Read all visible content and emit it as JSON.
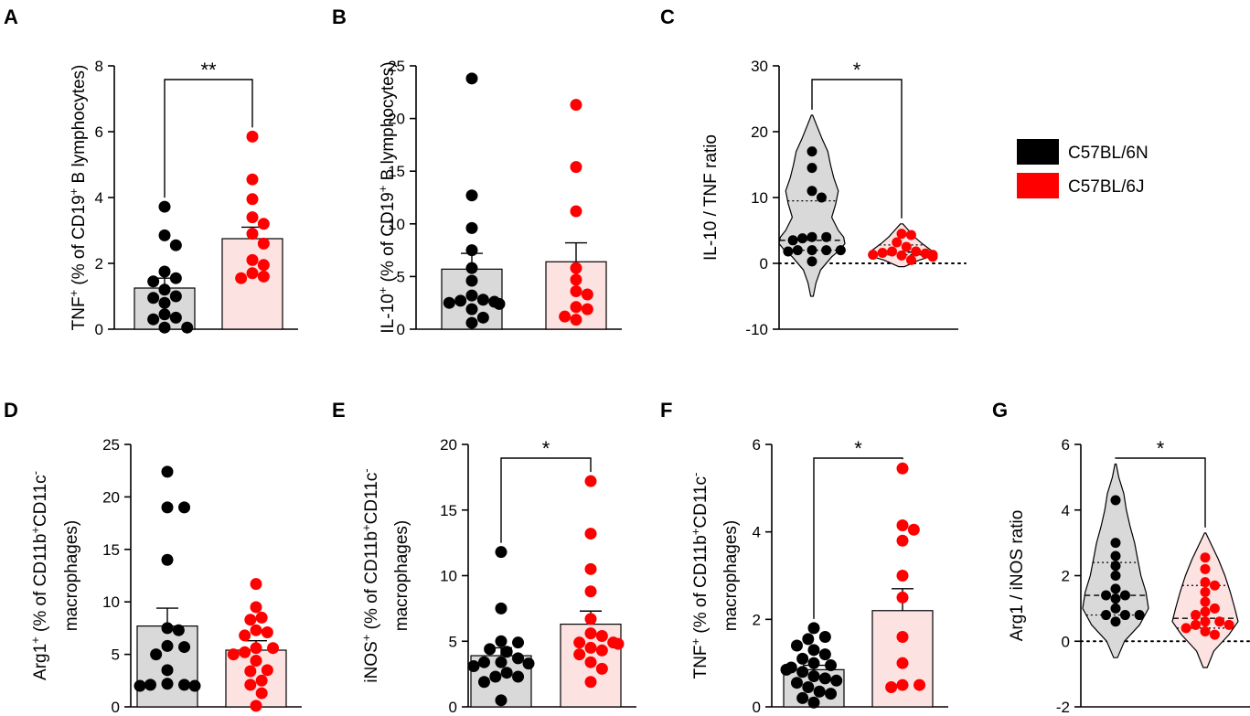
{
  "colors": {
    "group1_fill": "#d9d9d9",
    "group2_fill": "#fde2e2",
    "group1_dot": "#000000",
    "group2_dot": "#ff0000",
    "swatch1": "#000000",
    "swatch2": "#ff0000"
  },
  "legend": {
    "items": [
      "C57BL/6N",
      "C57BL/6J"
    ]
  },
  "chart_data": [
    {
      "panel": "A",
      "type": "bar",
      "ylabel": {
        "p1": "TNF",
        "s1": "+",
        "p2": " (% of CD19",
        "s2": "+",
        "p3": " B lymphocytes)"
      },
      "ylim": [
        0,
        8
      ],
      "yticks": [
        0,
        2,
        4,
        6,
        8
      ],
      "significance": "**",
      "series": [
        {
          "mean": 1.25,
          "sem": 0.3,
          "points": [
            3.72,
            2.85,
            2.55,
            1.75,
            1.55,
            1.45,
            1.2,
            1.0,
            0.95,
            0.8,
            0.45,
            0.35,
            0.3,
            0.05,
            0.05
          ]
        },
        {
          "mean": 2.75,
          "sem": 0.35,
          "points": [
            5.85,
            4.55,
            3.95,
            3.4,
            3.2,
            2.9,
            2.6,
            2.1,
            1.95,
            1.7,
            1.6,
            1.55
          ]
        }
      ]
    },
    {
      "panel": "B",
      "type": "bar",
      "ylabel": {
        "p1": "IL-10",
        "s1": "+",
        "p2": " (% of CD19",
        "s2": "+",
        "p3": " B lymphocytes)"
      },
      "ylim": [
        0,
        25
      ],
      "yticks": [
        0,
        5,
        10,
        15,
        20,
        25
      ],
      "series": [
        {
          "mean": 5.7,
          "sem": 1.5,
          "points": [
            23.8,
            12.7,
            9.6,
            7.5,
            5.8,
            4.6,
            3.2,
            2.8,
            2.6,
            2.7,
            2.5,
            2.4,
            1.9,
            1.1,
            0.6
          ]
        },
        {
          "mean": 6.4,
          "sem": 1.8,
          "points": [
            21.3,
            15.4,
            11.2,
            5.8,
            4.7,
            3.6,
            3.3,
            2.1,
            1.9,
            1.2,
            0.9
          ]
        }
      ]
    },
    {
      "panel": "C",
      "type": "violin",
      "ylabel": {
        "p1": "IL-10 / TNF ratio"
      },
      "ylim": [
        -10,
        30
      ],
      "yticks": [
        -10,
        0,
        10,
        20,
        30
      ],
      "zero_line": true,
      "significance": "*",
      "series": [
        {
          "median": 3.5,
          "q1": 2.0,
          "q3": 9.5,
          "kde_min": -5,
          "kde_max": 22.5,
          "profile": [
            [
              -5,
              0.02
            ],
            [
              -3,
              0.06
            ],
            [
              -1,
              0.13
            ],
            [
              1,
              0.3
            ],
            [
              2,
              0.42
            ],
            [
              3,
              0.5
            ],
            [
              4,
              0.48
            ],
            [
              5,
              0.4
            ],
            [
              7,
              0.3
            ],
            [
              9,
              0.36
            ],
            [
              11,
              0.4
            ],
            [
              13,
              0.33
            ],
            [
              15,
              0.28
            ],
            [
              17,
              0.24
            ],
            [
              19,
              0.15
            ],
            [
              21,
              0.07
            ],
            [
              22.5,
              0.01
            ]
          ],
          "points": [
            17,
            14.5,
            11,
            10,
            4,
            4,
            3.8,
            3.5,
            2,
            2,
            2,
            2,
            1.8,
            0.3
          ]
        },
        {
          "median": 1.7,
          "q1": 1.3,
          "q3": 2.8,
          "kde_min": -0.5,
          "kde_max": 6,
          "profile": [
            [
              -0.5,
              0.05
            ],
            [
              0.5,
              0.3
            ],
            [
              1.2,
              0.56
            ],
            [
              2,
              0.5
            ],
            [
              3,
              0.35
            ],
            [
              4,
              0.22
            ],
            [
              5,
              0.12
            ],
            [
              6,
              0.02
            ]
          ],
          "points": [
            4.5,
            4.3,
            3.2,
            2.5,
            1.8,
            1.8,
            1.6,
            1.5,
            1.3,
            1.3,
            1.2,
            1.0,
            0.5
          ]
        }
      ]
    },
    {
      "panel": "D",
      "type": "bar",
      "ylabel": {
        "p1": "Arg1",
        "s1": "+",
        "p2": " (% of CD11b",
        "s2": "+",
        "p3": "CD11c",
        "s3": "-",
        "line2": "macrophages)"
      },
      "ylim": [
        0,
        25
      ],
      "yticks": [
        0,
        5,
        10,
        15,
        20,
        25
      ],
      "series": [
        {
          "mean": 7.7,
          "sem": 1.7,
          "points": [
            22.4,
            19.0,
            19.0,
            14.0,
            7.5,
            7.3,
            5.8,
            5.7,
            5.0,
            3.5,
            2.2,
            2.1,
            2.1,
            2.0,
            2.0
          ]
        },
        {
          "mean": 5.4,
          "sem": 0.9,
          "points": [
            11.7,
            9.5,
            8.5,
            8.3,
            7.3,
            7.1,
            6.8,
            5.6,
            5.6,
            5.2,
            5.0,
            4.4,
            3.5,
            3.4,
            2.5,
            2.1,
            1.3,
            0.1
          ]
        }
      ]
    },
    {
      "panel": "E",
      "type": "bar",
      "ylabel": {
        "p1": "iNOS",
        "s1": "+",
        "p2": " (% of CD11b",
        "s2": "+",
        "p3": "CD11c",
        "s3": "-",
        "line2": "macrophages)"
      },
      "ylim": [
        0,
        20
      ],
      "yticks": [
        0,
        5,
        10,
        15,
        20
      ],
      "significance": "*",
      "series": [
        {
          "mean": 3.9,
          "sem": 0.6,
          "points": [
            11.8,
            7.5,
            5.0,
            4.9,
            4.4,
            4.2,
            3.7,
            3.4,
            3.4,
            3.3,
            3.1,
            2.6,
            2.3,
            2.3,
            1.9,
            0.5
          ]
        },
        {
          "mean": 6.3,
          "sem": 1.0,
          "points": [
            17.2,
            13.2,
            10.5,
            8.8,
            6.7,
            5.6,
            5.4,
            4.9,
            4.9,
            4.8,
            4.5,
            4.3,
            4.0,
            3.4,
            2.9,
            1.9
          ]
        }
      ]
    },
    {
      "panel": "F",
      "type": "bar",
      "ylabel": {
        "p1": "TNF",
        "s1": "+",
        "p2": " (% of CD11b",
        "s2": "+",
        "p3": "CD11c",
        "s3": "-",
        "line2": "macrophages)"
      },
      "ylim": [
        0,
        6
      ],
      "yticks": [
        0,
        2,
        4,
        6
      ],
      "significance": "*",
      "series": [
        {
          "mean": 0.85,
          "sem": 0.1,
          "points": [
            1.8,
            1.6,
            1.55,
            1.4,
            1.3,
            1.2,
            1.1,
            1.0,
            0.95,
            0.9,
            0.85,
            0.8,
            0.7,
            0.65,
            0.6,
            0.55,
            0.45,
            0.35,
            0.3,
            0.2,
            0.1
          ]
        },
        {
          "mean": 2.2,
          "sem": 0.5,
          "points": [
            5.45,
            4.15,
            4.05,
            3.8,
            3.0,
            2.5,
            1.6,
            1.0,
            0.5,
            0.45,
            0.5
          ]
        }
      ]
    },
    {
      "panel": "G",
      "type": "violin",
      "ylabel": {
        "p1": "Arg1 / iNOS ratio"
      },
      "ylim": [
        -2,
        6
      ],
      "yticks": [
        -2,
        0,
        2,
        4,
        6
      ],
      "zero_line": true,
      "significance": "*",
      "series": [
        {
          "median": 1.4,
          "q1": 0.8,
          "q3": 2.4,
          "kde_min": -0.5,
          "kde_max": 5.4,
          "profile": [
            [
              -0.5,
              0.03
            ],
            [
              0,
              0.14
            ],
            [
              0.5,
              0.38
            ],
            [
              1,
              0.52
            ],
            [
              1.5,
              0.48
            ],
            [
              2,
              0.4
            ],
            [
              2.5,
              0.35
            ],
            [
              3,
              0.3
            ],
            [
              3.5,
              0.23
            ],
            [
              4,
              0.17
            ],
            [
              4.5,
              0.13
            ],
            [
              5,
              0.05
            ],
            [
              5.4,
              0.01
            ]
          ],
          "points": [
            4.3,
            3.0,
            2.6,
            2.3,
            2.0,
            1.6,
            1.4,
            1.4,
            1.3,
            1.0,
            0.8,
            0.8,
            0.8,
            0.6
          ]
        },
        {
          "median": 0.7,
          "q1": 0.4,
          "q3": 1.7,
          "kde_min": -0.8,
          "kde_max": 3.3,
          "profile": [
            [
              -0.8,
              0.03
            ],
            [
              -0.3,
              0.13
            ],
            [
              0.2,
              0.36
            ],
            [
              0.6,
              0.5
            ],
            [
              1.0,
              0.45
            ],
            [
              1.5,
              0.38
            ],
            [
              2.0,
              0.3
            ],
            [
              2.5,
              0.2
            ],
            [
              3.0,
              0.08
            ],
            [
              3.3,
              0.01
            ]
          ],
          "points": [
            2.55,
            2.2,
            1.8,
            1.7,
            1.5,
            1.2,
            1.0,
            0.9,
            0.8,
            0.6,
            0.6,
            0.5,
            0.5,
            0.4,
            0.3,
            0.2
          ]
        }
      ]
    }
  ]
}
